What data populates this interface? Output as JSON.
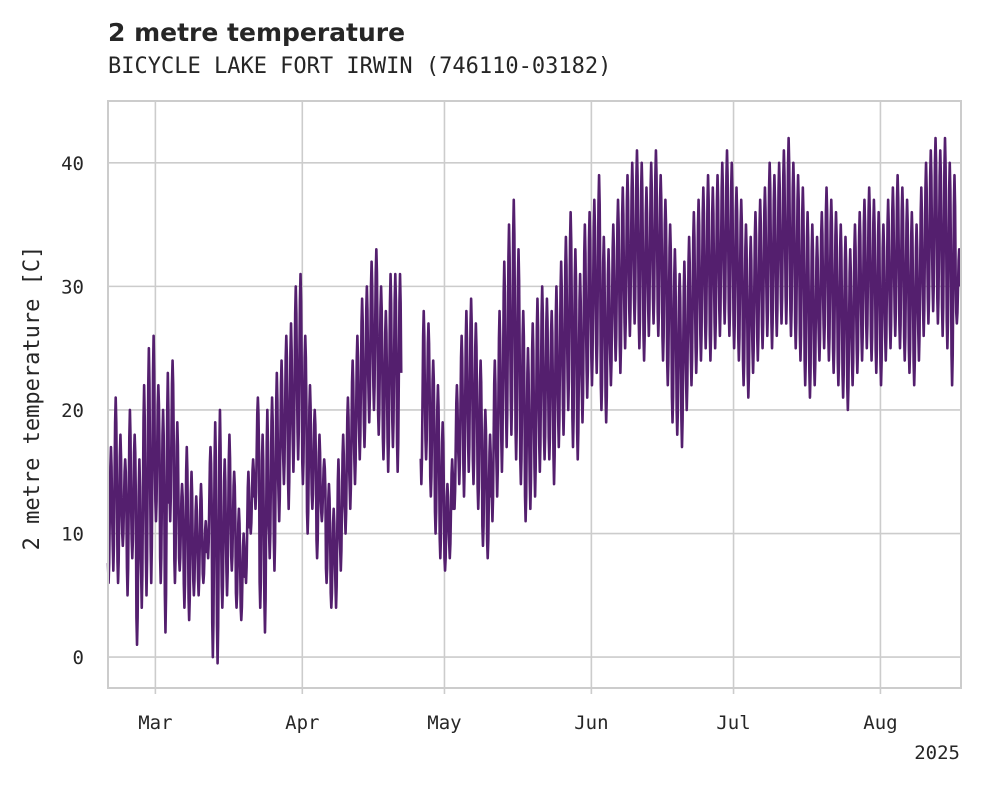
{
  "chart_data": {
    "type": "line",
    "title": "2 metre temperature",
    "subtitle": "BICYCLE LAKE FORT IRWIN (746110-03182)",
    "xlabel": "",
    "ylabel": "2 metre temperature [C]",
    "x_range": [
      "2025-02-19",
      "2025-08-17"
    ],
    "ylim": [
      -2.5,
      45
    ],
    "yticks": [
      0,
      10,
      20,
      30,
      40
    ],
    "xticks": [
      {
        "date": "2025-03-01",
        "label": "Mar"
      },
      {
        "date": "2025-04-01",
        "label": "Apr"
      },
      {
        "date": "2025-05-01",
        "label": "May"
      },
      {
        "date": "2025-06-01",
        "label": "Jun"
      },
      {
        "date": "2025-07-01",
        "label": "Jul"
      },
      {
        "date": "2025-08-01",
        "label": "Aug"
      }
    ],
    "year_label": "2025",
    "grid": true,
    "series": [
      {
        "color": "#541f6e",
        "sampling": "3-hourly (approx.)",
        "daily_min_max": [
          [
            "2025-02-19",
            6,
            17
          ],
          [
            "2025-02-20",
            7,
            21
          ],
          [
            "2025-02-21",
            6,
            18
          ],
          [
            "2025-02-22",
            9,
            16
          ],
          [
            "2025-02-23",
            5,
            20
          ],
          [
            "2025-02-24",
            8,
            18
          ],
          [
            "2025-02-25",
            1,
            16
          ],
          [
            "2025-02-26",
            4,
            22
          ],
          [
            "2025-02-27",
            5,
            25
          ],
          [
            "2025-02-28",
            6,
            26
          ],
          [
            "2025-03-01",
            11,
            22
          ],
          [
            "2025-03-02",
            6,
            20
          ],
          [
            "2025-03-03",
            2,
            23
          ],
          [
            "2025-03-04",
            11,
            24
          ],
          [
            "2025-03-05",
            6,
            19
          ],
          [
            "2025-03-06",
            7,
            14
          ],
          [
            "2025-03-07",
            4,
            17
          ],
          [
            "2025-03-08",
            3,
            15
          ],
          [
            "2025-03-09",
            5,
            13
          ],
          [
            "2025-03-10",
            5,
            14
          ],
          [
            "2025-03-11",
            6,
            11
          ],
          [
            "2025-03-12",
            8,
            17
          ],
          [
            "2025-03-13",
            0,
            19
          ],
          [
            "2025-03-14",
            -0.5,
            20
          ],
          [
            "2025-03-15",
            4,
            16
          ],
          [
            "2025-03-16",
            5,
            18
          ],
          [
            "2025-03-17",
            7,
            15
          ],
          [
            "2025-03-18",
            4,
            12
          ],
          [
            "2025-03-19",
            3,
            10
          ],
          [
            "2025-03-20",
            6,
            15
          ],
          [
            "2025-03-21",
            10,
            16
          ],
          [
            "2025-03-22",
            12,
            21
          ],
          [
            "2025-03-23",
            4,
            18
          ],
          [
            "2025-03-24",
            2,
            20
          ],
          [
            "2025-03-25",
            8,
            21
          ],
          [
            "2025-03-26",
            7,
            23
          ],
          [
            "2025-03-27",
            11,
            24
          ],
          [
            "2025-03-28",
            14,
            26
          ],
          [
            "2025-03-29",
            12,
            27
          ],
          [
            "2025-03-30",
            15,
            30
          ],
          [
            "2025-03-31",
            16,
            31
          ],
          [
            "2025-04-01",
            14,
            26
          ],
          [
            "2025-04-02",
            10,
            22
          ],
          [
            "2025-04-03",
            12,
            20
          ],
          [
            "2025-04-04",
            8,
            18
          ],
          [
            "2025-04-05",
            11,
            16
          ],
          [
            "2025-04-06",
            6,
            14
          ],
          [
            "2025-04-07",
            4,
            12
          ],
          [
            "2025-04-08",
            4,
            16
          ],
          [
            "2025-04-09",
            7,
            18
          ],
          [
            "2025-04-10",
            10,
            21
          ],
          [
            "2025-04-11",
            12,
            24
          ],
          [
            "2025-04-12",
            14,
            26
          ],
          [
            "2025-04-13",
            16,
            29
          ],
          [
            "2025-04-14",
            17,
            30
          ],
          [
            "2025-04-15",
            19,
            32
          ],
          [
            "2025-04-16",
            20,
            33
          ],
          [
            "2025-04-17",
            18,
            30
          ],
          [
            "2025-04-18",
            16,
            28
          ],
          [
            "2025-04-19",
            15,
            31
          ],
          [
            "2025-04-20",
            17,
            31
          ],
          [
            "2025-04-21",
            15,
            31
          ],
          [
            "2025-04-26",
            14,
            28
          ],
          [
            "2025-04-27",
            16,
            27
          ],
          [
            "2025-04-28",
            13,
            24
          ],
          [
            "2025-04-29",
            10,
            22
          ],
          [
            "2025-04-30",
            8,
            19
          ],
          [
            "2025-05-01",
            7,
            14
          ],
          [
            "2025-05-02",
            8,
            16
          ],
          [
            "2025-05-03",
            12,
            22
          ],
          [
            "2025-05-04",
            14,
            26
          ],
          [
            "2025-05-05",
            13,
            28
          ],
          [
            "2025-05-06",
            15,
            29
          ],
          [
            "2025-05-07",
            14,
            27
          ],
          [
            "2025-05-08",
            12,
            24
          ],
          [
            "2025-05-09",
            9,
            20
          ],
          [
            "2025-05-10",
            8,
            18
          ],
          [
            "2025-05-11",
            11,
            24
          ],
          [
            "2025-05-12",
            13,
            28
          ],
          [
            "2025-05-13",
            15,
            32
          ],
          [
            "2025-05-14",
            17,
            35
          ],
          [
            "2025-05-15",
            18,
            37
          ],
          [
            "2025-05-16",
            16,
            33
          ],
          [
            "2025-05-17",
            14,
            28
          ],
          [
            "2025-05-18",
            11,
            25
          ],
          [
            "2025-05-19",
            12,
            27
          ],
          [
            "2025-05-20",
            13,
            29
          ],
          [
            "2025-05-21",
            15,
            30
          ],
          [
            "2025-05-22",
            16,
            29
          ],
          [
            "2025-05-23",
            16,
            28
          ],
          [
            "2025-05-24",
            14,
            30
          ],
          [
            "2025-05-25",
            17,
            32
          ],
          [
            "2025-05-26",
            18,
            34
          ],
          [
            "2025-05-27",
            20,
            36
          ],
          [
            "2025-05-28",
            17,
            33
          ],
          [
            "2025-05-29",
            16,
            31
          ],
          [
            "2025-05-30",
            19,
            35
          ],
          [
            "2025-05-31",
            21,
            36
          ],
          [
            "2025-06-01",
            22,
            37
          ],
          [
            "2025-06-02",
            23,
            39
          ],
          [
            "2025-06-03",
            20,
            34
          ],
          [
            "2025-06-04",
            19,
            33
          ],
          [
            "2025-06-05",
            22,
            35
          ],
          [
            "2025-06-06",
            24,
            37
          ],
          [
            "2025-06-07",
            23,
            38
          ],
          [
            "2025-06-08",
            25,
            39
          ],
          [
            "2025-06-09",
            26,
            40
          ],
          [
            "2025-06-10",
            27,
            41
          ],
          [
            "2025-06-11",
            25,
            40
          ],
          [
            "2025-06-12",
            24,
            38
          ],
          [
            "2025-06-13",
            26,
            40
          ],
          [
            "2025-06-14",
            27,
            41
          ],
          [
            "2025-06-15",
            26,
            39
          ],
          [
            "2025-06-16",
            24,
            37
          ],
          [
            "2025-06-17",
            22,
            35
          ],
          [
            "2025-06-18",
            19,
            33
          ],
          [
            "2025-06-19",
            18,
            31
          ],
          [
            "2025-06-20",
            17,
            32
          ],
          [
            "2025-06-21",
            20,
            34
          ],
          [
            "2025-06-22",
            22,
            36
          ],
          [
            "2025-06-23",
            23,
            37
          ],
          [
            "2025-06-24",
            24,
            38
          ],
          [
            "2025-06-25",
            25,
            39
          ],
          [
            "2025-06-26",
            24,
            38
          ],
          [
            "2025-06-27",
            25,
            39
          ],
          [
            "2025-06-28",
            26,
            40
          ],
          [
            "2025-06-29",
            27,
            41
          ],
          [
            "2025-06-30",
            26,
            40
          ],
          [
            "2025-07-01",
            25,
            38
          ],
          [
            "2025-07-02",
            24,
            37
          ],
          [
            "2025-07-03",
            22,
            35
          ],
          [
            "2025-07-04",
            21,
            34
          ],
          [
            "2025-07-05",
            23,
            36
          ],
          [
            "2025-07-06",
            24,
            37
          ],
          [
            "2025-07-07",
            25,
            38
          ],
          [
            "2025-07-08",
            26,
            40
          ],
          [
            "2025-07-09",
            25,
            39
          ],
          [
            "2025-07-10",
            26,
            40
          ],
          [
            "2025-07-11",
            27,
            41
          ],
          [
            "2025-07-12",
            27,
            42
          ],
          [
            "2025-07-13",
            26,
            40
          ],
          [
            "2025-07-14",
            25,
            39
          ],
          [
            "2025-07-15",
            24,
            38
          ],
          [
            "2025-07-16",
            22,
            36
          ],
          [
            "2025-07-17",
            21,
            35
          ],
          [
            "2025-07-18",
            22,
            34
          ],
          [
            "2025-07-19",
            24,
            36
          ],
          [
            "2025-07-20",
            25,
            38
          ],
          [
            "2025-07-21",
            24,
            37
          ],
          [
            "2025-07-22",
            23,
            36
          ],
          [
            "2025-07-23",
            22,
            35
          ],
          [
            "2025-07-24",
            21,
            34
          ],
          [
            "2025-07-25",
            20,
            33
          ],
          [
            "2025-07-26",
            22,
            35
          ],
          [
            "2025-07-27",
            23,
            36
          ],
          [
            "2025-07-28",
            24,
            37
          ],
          [
            "2025-07-29",
            25,
            38
          ],
          [
            "2025-07-30",
            24,
            37
          ],
          [
            "2025-07-31",
            23,
            36
          ],
          [
            "2025-08-01",
            22,
            35
          ],
          [
            "2025-08-02",
            24,
            37
          ],
          [
            "2025-08-03",
            25,
            38
          ],
          [
            "2025-08-04",
            26,
            39
          ],
          [
            "2025-08-05",
            25,
            38
          ],
          [
            "2025-08-06",
            24,
            37
          ],
          [
            "2025-08-07",
            23,
            36
          ],
          [
            "2025-08-08",
            22,
            35
          ],
          [
            "2025-08-09",
            24,
            38
          ],
          [
            "2025-08-10",
            26,
            40
          ],
          [
            "2025-08-11",
            27,
            41
          ],
          [
            "2025-08-12",
            28,
            42
          ],
          [
            "2025-08-13",
            27,
            41
          ],
          [
            "2025-08-14",
            26,
            42
          ],
          [
            "2025-08-15",
            25,
            40
          ],
          [
            "2025-08-16",
            22,
            39
          ],
          [
            "2025-08-17",
            27,
            33
          ]
        ]
      }
    ]
  }
}
